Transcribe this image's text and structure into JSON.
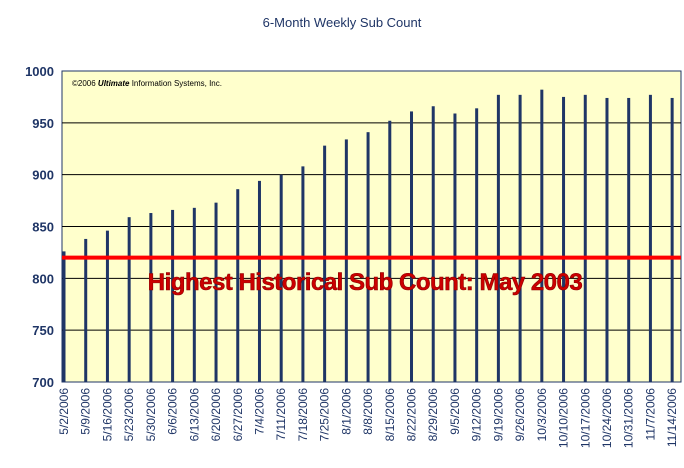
{
  "chart_data": {
    "type": "bar",
    "title": "6-Month Weekly Sub Count",
    "copyright": {
      "prefix": "©2006 ",
      "italic": "Ultimate",
      "suffix": " Information Systems, Inc."
    },
    "categories": [
      "5/2/2006",
      "5/9/2006",
      "5/16/2006",
      "5/23/2006",
      "5/30/2006",
      "6/6/2006",
      "6/13/2006",
      "6/20/2006",
      "6/27/2006",
      "7/4/2006",
      "7/11/2006",
      "7/18/2006",
      "7/25/2006",
      "8/1/2006",
      "8/8/2006",
      "8/15/2006",
      "8/22/2006",
      "8/29/2006",
      "9/5/2006",
      "9/12/2006",
      "9/19/2006",
      "9/26/2006",
      "10/3/2006",
      "10/10/2006",
      "10/17/2006",
      "10/24/2006",
      "10/31/2006",
      "11/7/2006",
      "11/14/2006"
    ],
    "values": [
      826,
      838,
      846,
      859,
      863,
      866,
      868,
      873,
      886,
      894,
      900,
      908,
      928,
      934,
      941,
      952,
      961,
      966,
      959,
      964,
      977,
      977,
      982,
      975,
      977,
      974,
      974,
      977,
      974
    ],
    "ylim": [
      700,
      1000
    ],
    "yticks": [
      "700",
      "750",
      "800",
      "850",
      "900",
      "950",
      "1000"
    ],
    "ytick_values": [
      700,
      750,
      800,
      850,
      900,
      950,
      1000
    ],
    "grid": true,
    "reference_line": {
      "value": 820,
      "color": "#ff0000"
    },
    "annotation": "Highest Historical Sub Count: May 2003",
    "colors": {
      "bar": "#1f3566",
      "plot_bg": "#ffffcc",
      "text": "#1f3566",
      "annotation": "#cc0000"
    }
  }
}
